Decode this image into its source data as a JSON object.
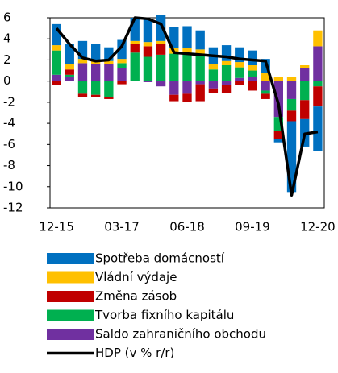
{
  "chart_data": {
    "type": "bar",
    "categories": [
      "12-15",
      null,
      null,
      null,
      null,
      "03-17",
      null,
      null,
      null,
      null,
      "06-18",
      null,
      null,
      null,
      null,
      "09-19",
      null,
      null,
      null,
      null,
      "12-20"
    ],
    "series": [
      {
        "name": "Spotřeba domácností",
        "color": "#0070c0",
        "values": [
          2.0,
          1.9,
          1.7,
          1.5,
          1.3,
          1.8,
          2.2,
          2.2,
          2.5,
          2.0,
          2.1,
          1.8,
          1.6,
          1.5,
          1.4,
          1.4,
          1.3,
          -0.3,
          -6.7,
          -2.6,
          -4.2
        ]
      },
      {
        "name": "Vládní výdaje",
        "color": "#ffc000",
        "values": [
          0.5,
          0.5,
          0.4,
          0.4,
          0.3,
          0.4,
          0.3,
          0.4,
          0.3,
          0.5,
          0.6,
          0.5,
          0.5,
          0.4,
          0.5,
          0.5,
          0.8,
          0.4,
          0.4,
          0.3,
          1.5
        ]
      },
      {
        "name": "Změna zásob",
        "color": "#c00000",
        "values": [
          -0.4,
          0.5,
          -0.3,
          -0.2,
          -0.2,
          -0.3,
          0.8,
          1.0,
          1.0,
          -0.6,
          -0.8,
          -1.6,
          -0.4,
          -0.7,
          -0.4,
          -0.9,
          -0.5,
          -0.8,
          -1.0,
          -1.8,
          -1.9
        ]
      },
      {
        "name": "Tvorba fixního kapitálu",
        "color": "#00b050",
        "values": [
          2.3,
          0.2,
          -1.2,
          -1.3,
          -1.5,
          0.5,
          2.7,
          2.3,
          2.5,
          2.6,
          2.5,
          2.5,
          1.1,
          1.5,
          1.0,
          0.6,
          -0.3,
          -1.3,
          -1.1,
          -1.8,
          -0.5
        ]
      },
      {
        "name": "Saldo zahraničního obchodu",
        "color": "#7030a0",
        "values": [
          0.6,
          0.4,
          1.7,
          1.6,
          1.6,
          1.2,
          0.0,
          -0.1,
          -0.5,
          -1.3,
          -1.2,
          -0.3,
          -0.7,
          -0.4,
          0.3,
          0.4,
          -0.9,
          -3.4,
          -1.7,
          1.2,
          3.3
        ]
      },
      {
        "name": "HDP (v % r/r)",
        "color": "#000000",
        "type": "line",
        "values": [
          5.0,
          3.5,
          2.2,
          1.9,
          2.0,
          3.3,
          6.0,
          5.9,
          5.4,
          2.7,
          2.6,
          2.5,
          2.4,
          2.3,
          2.1,
          2.0,
          1.9,
          -2.2,
          -10.8,
          -5.0,
          -4.8
        ]
      }
    ],
    "ylim": [
      -12,
      6
    ],
    "yticks": [
      -12,
      -10,
      -8,
      -6,
      -4,
      -2,
      0,
      2,
      4,
      6
    ]
  }
}
